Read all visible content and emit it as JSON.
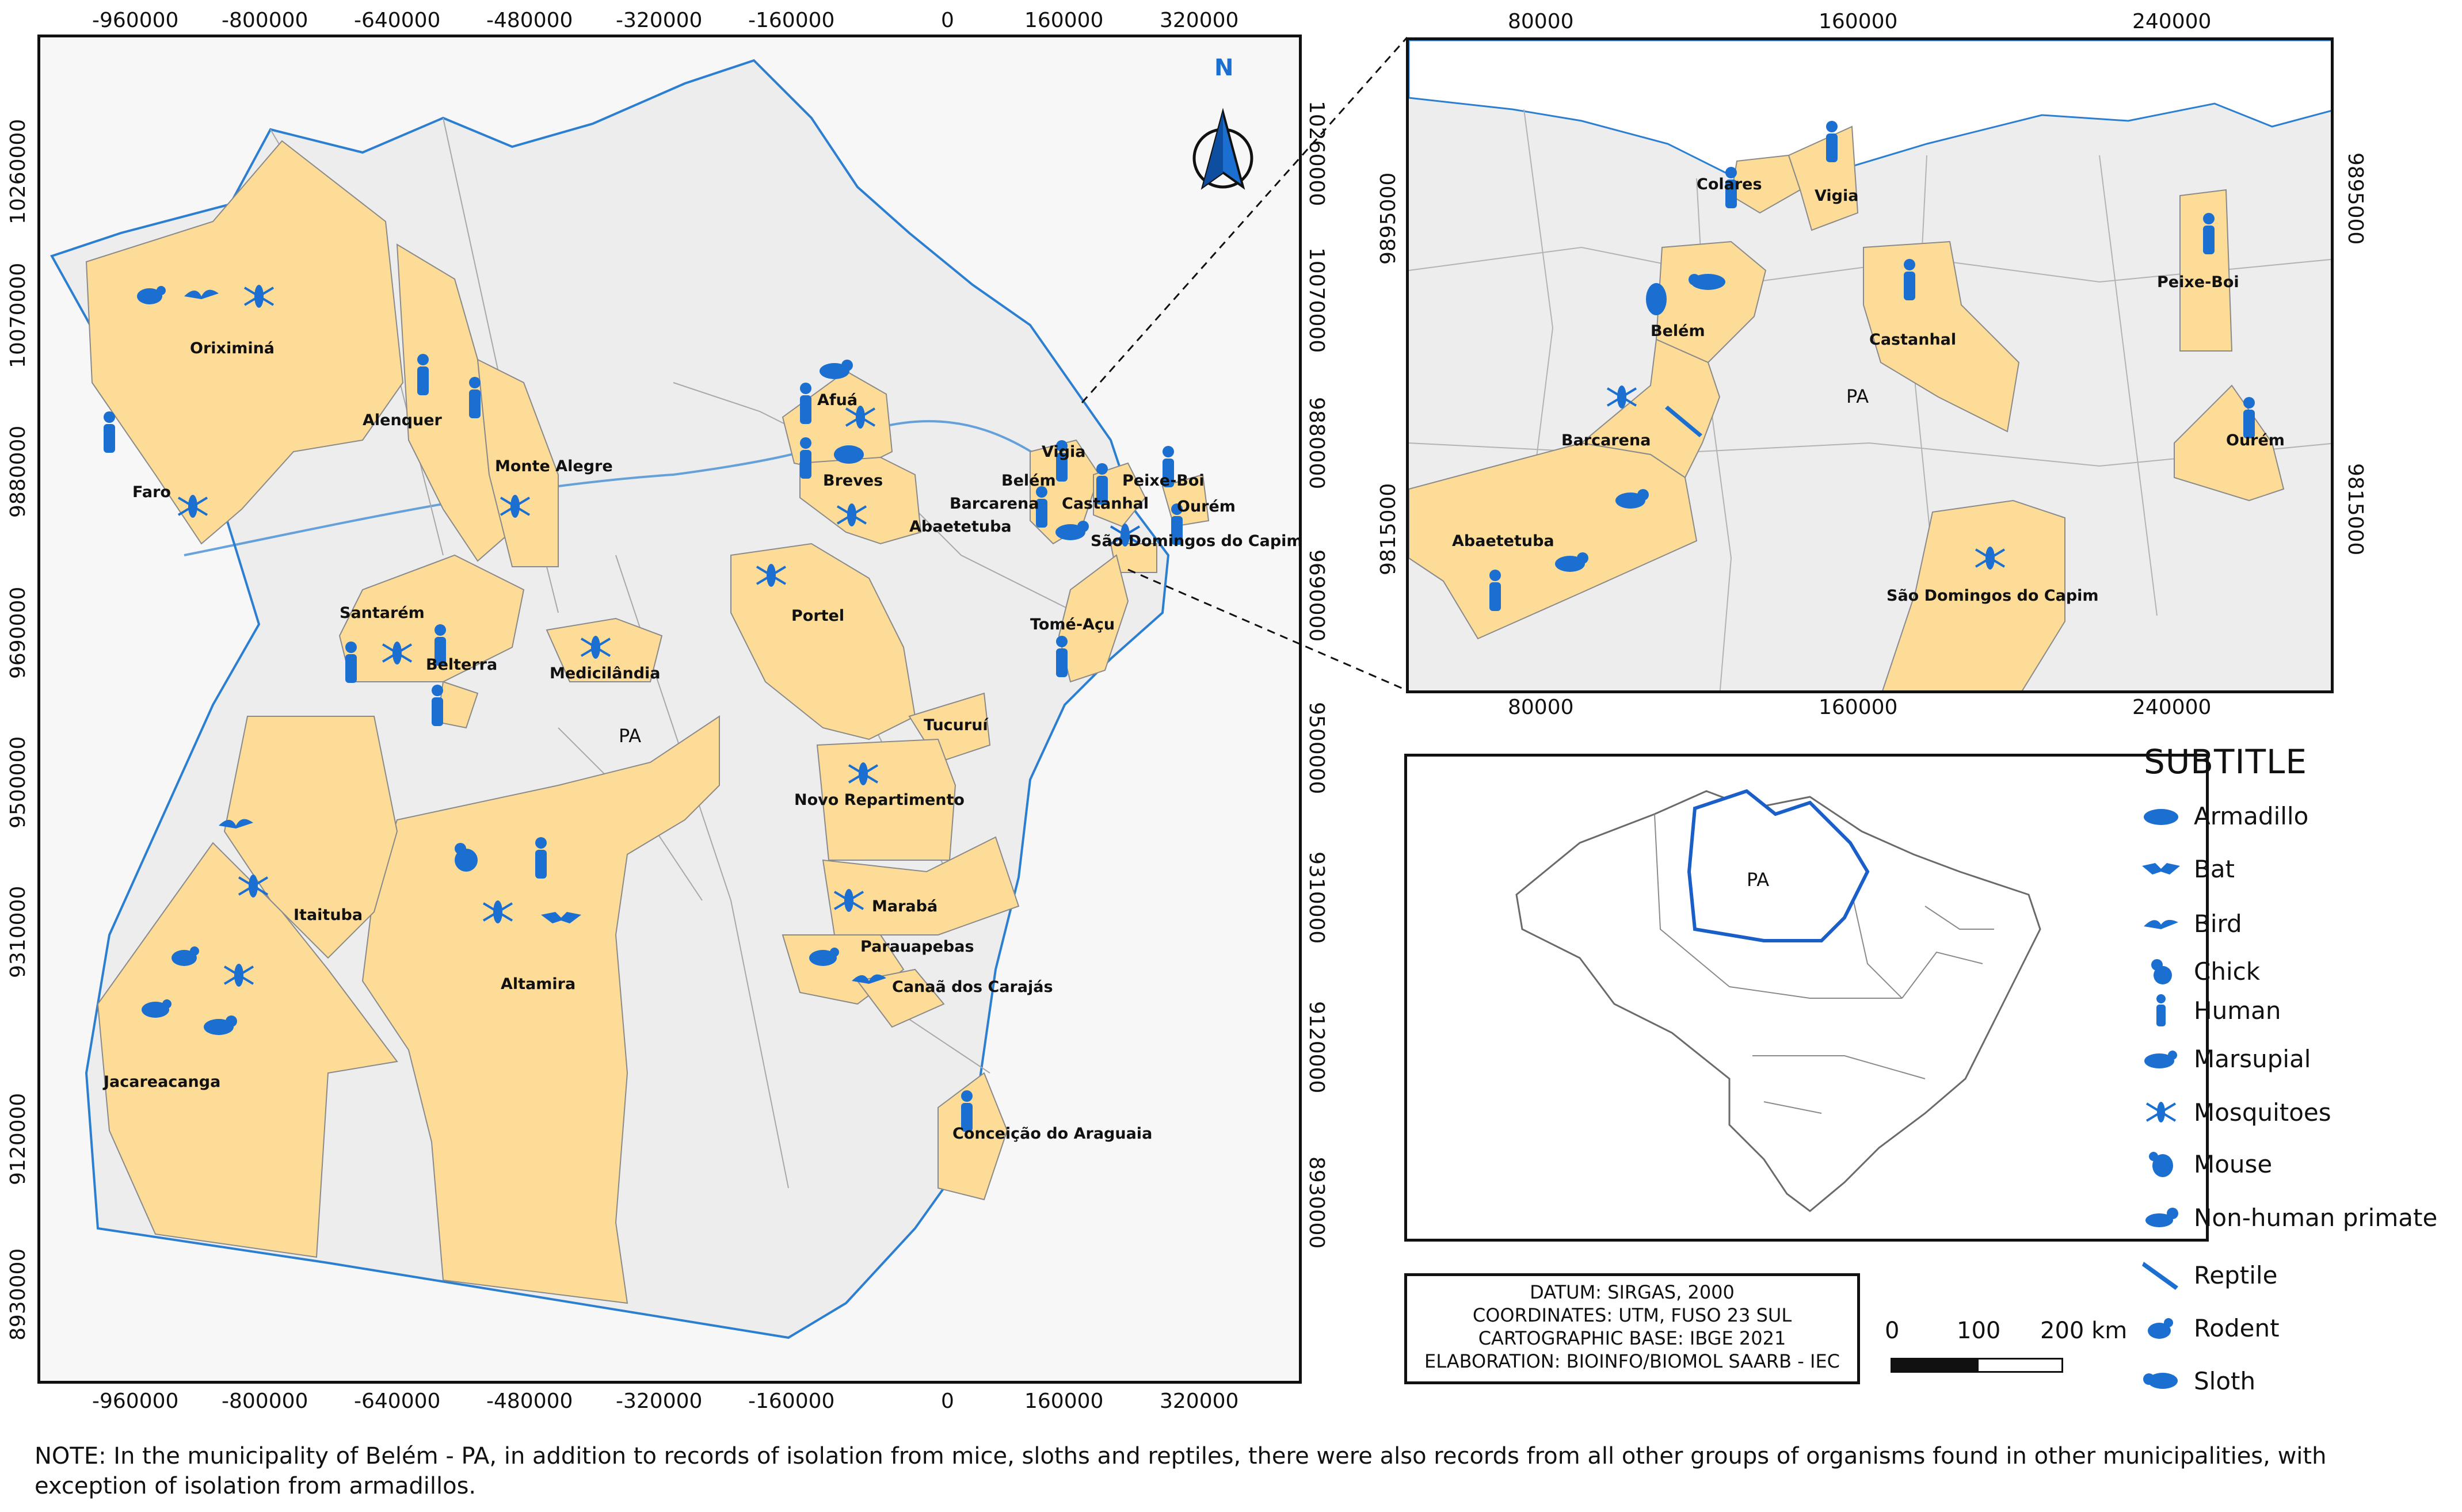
{
  "main_map": {
    "top_ticks": [
      "-960000",
      "-800000",
      "-640000",
      "-480000",
      "-320000",
      "-160000",
      "0",
      "160000",
      "320000"
    ],
    "bottom_ticks": [
      "-960000",
      "-800000",
      "-640000",
      "-480000",
      "-320000",
      "-160000",
      "0",
      "160000",
      "320000"
    ],
    "left_ticks": [
      "10260000",
      "10070000",
      "9880000",
      "9690000",
      "9500000",
      "9310000",
      "9120000",
      "8930000"
    ],
    "right_ticks": [
      "10260000",
      "10070000",
      "9880000",
      "9690000",
      "9500000",
      "9310000",
      "9120000",
      "8930000"
    ],
    "north_label": "N",
    "state_label": "PA",
    "municipalities": [
      "Oriximiná",
      "Faro",
      "Alenquer",
      "Monte Alegre",
      "Santarém",
      "Belterra",
      "Medicilândia",
      "Afuá",
      "Breves",
      "Portel",
      "Vigia",
      "Belém",
      "Barcarena",
      "Abaetetuba",
      "Castanhal",
      "Peixe-Boi",
      "Ourém",
      "São Domingos do Capim",
      "Tomé-Açu",
      "Tucuruí",
      "Novo Repartimento",
      "Marabá",
      "Parauapebas",
      "Canaã dos Carajás",
      "Itaituba",
      "Altamira",
      "Jacareacanga",
      "Conceição do Araguaia"
    ]
  },
  "inset_map": {
    "top_ticks": [
      "80000",
      "160000",
      "240000"
    ],
    "bottom_ticks": [
      "80000",
      "160000",
      "240000"
    ],
    "left_ticks": [
      "9895000",
      "9815000"
    ],
    "right_ticks": [
      "9895000",
      "9815000"
    ],
    "state_label": "PA",
    "municipalities": [
      "Colares",
      "Vigia",
      "Belém",
      "Castanhal",
      "Peixe-Boi",
      "Barcarena",
      "Ourém",
      "Abaetetuba",
      "São Domingos do Capim"
    ]
  },
  "locator_map": {
    "label": "PA"
  },
  "legend": {
    "title": "SUBTITLE",
    "items": [
      {
        "label": "Armadillo",
        "icon": "armadillo-icon"
      },
      {
        "label": "Bat",
        "icon": "bat-icon"
      },
      {
        "label": "Bird",
        "icon": "bird-icon"
      },
      {
        "label": "Chick",
        "icon": "chick-icon"
      },
      {
        "label": "Human",
        "icon": "human-icon"
      },
      {
        "label": "Marsupial",
        "icon": "marsupial-icon"
      },
      {
        "label": "Mosquitoes",
        "icon": "mosquito-icon"
      },
      {
        "label": "Mouse",
        "icon": "mouse-icon"
      },
      {
        "label": "Non-human primate",
        "icon": "primate-icon"
      },
      {
        "label": "Reptile",
        "icon": "reptile-icon"
      },
      {
        "label": "Rodent",
        "icon": "rodent-icon"
      },
      {
        "label": "Sloth",
        "icon": "sloth-icon"
      }
    ]
  },
  "info": {
    "datum": "DATUM: SIRGAS, 2000",
    "coordinates": "COORDINATES: UTM, FUSO 23 SUL",
    "base": "CARTOGRAPHIC BASE: IBGE 2021",
    "elaboration": "ELABORATION: BIOINFO/BIOMOL SAARB - IEC"
  },
  "scale": {
    "labels": [
      "0",
      "100",
      "200 km"
    ]
  },
  "note": "NOTE: In the municipality of Belém - PA, in addition to records of isolation from mice, sloths and reptiles, there were also records from all other groups of organisms found in other municipalities, with exception of isolation from armadillos.",
  "colors": {
    "highlight": "#fddc98",
    "state_fill": "#ededed",
    "icon": "#1a6fd1",
    "river": "#2c7fd0",
    "boundary": "#9a9a9a"
  }
}
